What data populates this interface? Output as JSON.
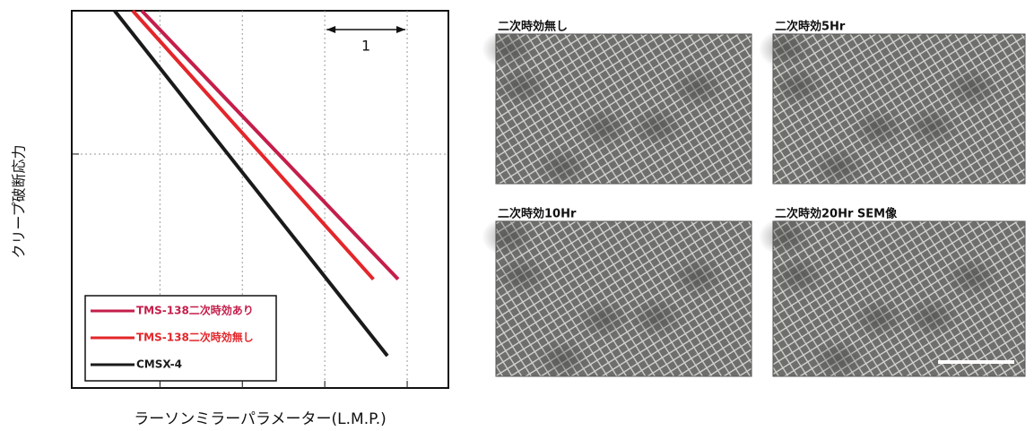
{
  "chart_data": {
    "type": "line",
    "x_label": "ラーソンミラーパラメーター(L.M.P.)",
    "y_label": "クリープ破断応力",
    "xlim": [
      0,
      4.57
    ],
    "ylim": [
      0,
      4.58
    ],
    "xticks": [
      1.07,
      2.07,
      3.07,
      4.07
    ],
    "yticks": [
      2.84
    ],
    "grid": true,
    "legend": "lower left",
    "annotation": "1",
    "series": [
      {
        "name": "TMS-138二次時効あり",
        "color": "#c41e4a",
        "x": [
          0.85,
          3.96
        ],
        "values": [
          4.58,
          1.32
        ]
      },
      {
        "name": "TMS-138二次時効無し",
        "color": "#e3262a",
        "x": [
          0.74,
          3.66
        ],
        "values": [
          4.58,
          1.32
        ]
      },
      {
        "name": "CMSX-4",
        "color": "#1a1a1a",
        "x": [
          0.52,
          3.83
        ],
        "values": [
          4.58,
          0.39
        ]
      }
    ]
  },
  "micrographs": {
    "panels": [
      {
        "caption": "二次時効無し"
      },
      {
        "caption": "二次時効5Hr"
      },
      {
        "caption": "二次時効10Hr"
      },
      {
        "caption": "二次時効20Hr SEM像"
      }
    ]
  }
}
